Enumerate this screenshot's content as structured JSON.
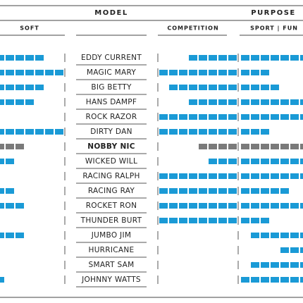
{
  "header": {
    "model": "MODEL",
    "purpose": "PURPOSE"
  },
  "subheader": {
    "soft": "SOFT",
    "competition": "COMPETITION",
    "sport_fun": "SPORT | FUN"
  },
  "block_color": "#1a9ad6",
  "highlight_color": "#7a7a7a",
  "rows": [
    {
      "name": "EDDY CURRENT",
      "soft": 5,
      "competition": 5,
      "sport_from": 0,
      "sport": 7
    },
    {
      "name": "MAGIC MARY",
      "soft": 7,
      "competition": 8,
      "sport_from": 0,
      "sport": 3
    },
    {
      "name": "BIG BETTY",
      "soft": 5,
      "competition": 7,
      "sport_from": 0,
      "sport": 4
    },
    {
      "name": "HANS DAMPF",
      "soft": 4,
      "competition": 5,
      "sport_from": 0,
      "sport": 7
    },
    {
      "name": "ROCK RAZOR",
      "soft": 0,
      "competition": 8,
      "sport_from": 0,
      "sport": 7
    },
    {
      "name": "DIRTY DAN",
      "soft": 7,
      "competition": 8,
      "sport_from": 0,
      "sport": 3
    },
    {
      "name": "NOBBY NIC",
      "soft": 3,
      "competition": 4,
      "sport_from": 0,
      "sport": 7,
      "highlight": true
    },
    {
      "name": "WICKED WILL",
      "soft": 2,
      "competition": 3,
      "sport_from": 0,
      "sport": 7
    },
    {
      "name": "RACING RALPH",
      "soft": 0,
      "competition": 8,
      "sport_from": 0,
      "sport": 7
    },
    {
      "name": "RACING RAY",
      "soft": 2,
      "competition": 8,
      "sport_from": 0,
      "sport": 5
    },
    {
      "name": "ROCKET RON",
      "soft": 3,
      "competition": 8,
      "sport_from": 0,
      "sport": 7
    },
    {
      "name": "THUNDER BURT",
      "soft": 0,
      "competition": 8,
      "sport_from": 0,
      "sport": 3
    },
    {
      "name": "JUMBO JIM",
      "soft": 3,
      "competition": 0,
      "sport_from": 1,
      "sport": 6
    },
    {
      "name": "HURRICANE",
      "soft": 0,
      "competition": 0,
      "sport_from": 4,
      "sport": 3
    },
    {
      "name": "SMART SAM",
      "soft": 0,
      "competition": 0,
      "sport_from": 1,
      "sport": 6
    },
    {
      "name": "JOHNNY WATTS",
      "soft": 1,
      "competition": 0,
      "sport_from": 0,
      "sport": 7
    }
  ]
}
